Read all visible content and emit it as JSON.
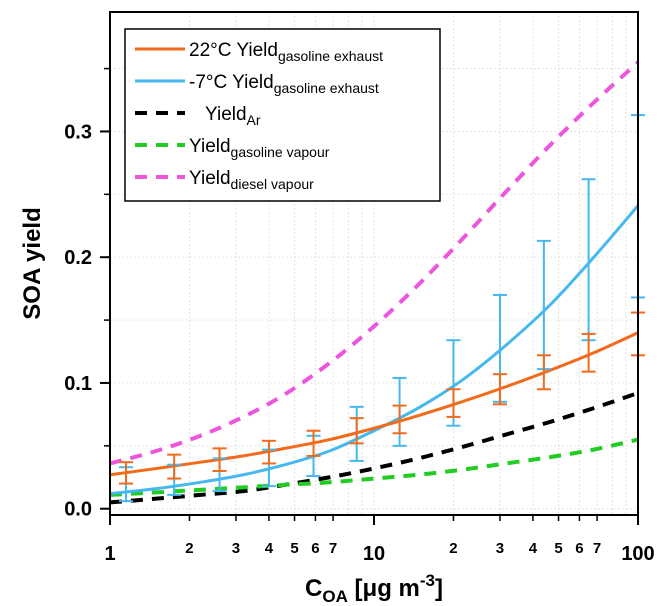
{
  "chart_data": {
    "type": "line",
    "xlabel": {
      "main": "C",
      "sub": "OA",
      "rest": " [μg m",
      "sup": "-3",
      "end": "]"
    },
    "ylabel": "SOA yield",
    "xscale": "log",
    "xlim": [
      1,
      100
    ],
    "ylim": [
      -0.005,
      0.395
    ],
    "x_major_ticks": [
      {
        "v": 1,
        "label": "1"
      },
      {
        "v": 10,
        "label": "10"
      },
      {
        "v": 100,
        "label": "100"
      }
    ],
    "x_minor_ticks": [
      {
        "v": 2,
        "label": "2"
      },
      {
        "v": 3,
        "label": "3"
      },
      {
        "v": 4,
        "label": "4"
      },
      {
        "v": 5,
        "label": "5"
      },
      {
        "v": 6,
        "label": "6"
      },
      {
        "v": 7,
        "label": "7"
      },
      {
        "v": 20,
        "label": "2"
      },
      {
        "v": 30,
        "label": "3"
      },
      {
        "v": 40,
        "label": "4"
      },
      {
        "v": 50,
        "label": "5"
      },
      {
        "v": 60,
        "label": "6"
      },
      {
        "v": 70,
        "label": "7"
      }
    ],
    "y_ticks": [
      {
        "v": 0,
        "label": "0.0"
      },
      {
        "v": 0.1,
        "label": "0.1"
      },
      {
        "v": 0.2,
        "label": "0.2"
      },
      {
        "v": 0.3,
        "label": "0.3"
      }
    ],
    "grid": true,
    "legend_position": "top-left",
    "series": [
      {
        "key": "warm",
        "name": "22°C Yield",
        "name_sub": "gasoline exhaust",
        "color": "#f26a1b",
        "dash": "solid",
        "x": [
          1,
          1.5,
          2.2,
          3.2,
          4.6,
          6.8,
          10,
          14.7,
          21.5,
          31.6,
          46.4,
          68,
          100
        ],
        "y": [
          0.027,
          0.032,
          0.037,
          0.042,
          0.048,
          0.055,
          0.064,
          0.074,
          0.085,
          0.097,
          0.11,
          0.124,
          0.14
        ]
      },
      {
        "key": "cold",
        "name": "-7°C Yield",
        "name_sub": "gasoline exhaust",
        "color": "#45b8f0",
        "dash": "solid",
        "x": [
          1,
          1.5,
          2.2,
          3.2,
          4.6,
          6.8,
          10,
          14.7,
          21.5,
          31.6,
          46.4,
          68,
          100
        ],
        "y": [
          0.012,
          0.016,
          0.021,
          0.027,
          0.035,
          0.046,
          0.062,
          0.08,
          0.102,
          0.13,
          0.162,
          0.2,
          0.241
        ]
      },
      {
        "key": "ar",
        "name": "Yield",
        "name_sub": "Ar",
        "color": "#000000",
        "dash": "dash",
        "x": [
          1,
          1.5,
          2.2,
          3.2,
          4.6,
          6.8,
          10,
          14.7,
          21.5,
          31.6,
          46.4,
          68,
          100
        ],
        "y": [
          0.005,
          0.008,
          0.011,
          0.014,
          0.019,
          0.025,
          0.032,
          0.04,
          0.049,
          0.059,
          0.069,
          0.08,
          0.092
        ]
      },
      {
        "key": "gv",
        "name": "Yield",
        "name_sub": "gasoline vapour",
        "color": "#22cc22",
        "dash": "dash",
        "x": [
          1,
          1.5,
          2.2,
          3.2,
          4.6,
          6.8,
          10,
          14.7,
          21.5,
          31.6,
          46.4,
          68,
          100
        ],
        "y": [
          0.011,
          0.013,
          0.015,
          0.017,
          0.019,
          0.021,
          0.024,
          0.027,
          0.031,
          0.036,
          0.041,
          0.047,
          0.055
        ]
      },
      {
        "key": "dv",
        "name": "Yield",
        "name_sub": "diesel vapour",
        "color": "#ee55dd",
        "dash": "dash",
        "x": [
          1,
          1.5,
          2.2,
          3.2,
          4.6,
          6.8,
          10,
          14.7,
          21.5,
          31.6,
          46.4,
          68,
          100
        ],
        "y": [
          0.036,
          0.046,
          0.058,
          0.073,
          0.091,
          0.116,
          0.145,
          0.178,
          0.214,
          0.252,
          0.289,
          0.323,
          0.355
        ]
      }
    ],
    "error_bars": [
      {
        "series": "cold",
        "color": "#45b8f0",
        "points": [
          {
            "x": 1.15,
            "lo": 0.006,
            "hi": 0.033
          },
          {
            "x": 1.75,
            "lo": 0.011,
            "hi": 0.035
          },
          {
            "x": 2.6,
            "lo": 0.014,
            "hi": 0.04
          },
          {
            "x": 4.0,
            "lo": 0.018,
            "hi": 0.047
          },
          {
            "x": 5.9,
            "lo": 0.026,
            "hi": 0.058
          },
          {
            "x": 8.6,
            "lo": 0.038,
            "hi": 0.081
          },
          {
            "x": 12.5,
            "lo": 0.05,
            "hi": 0.104
          },
          {
            "x": 20,
            "lo": 0.066,
            "hi": 0.134
          },
          {
            "x": 30,
            "lo": 0.085,
            "hi": 0.17
          },
          {
            "x": 44,
            "lo": 0.111,
            "hi": 0.213
          },
          {
            "x": 65,
            "lo": 0.134,
            "hi": 0.262
          },
          {
            "x": 100,
            "lo": 0.168,
            "hi": 0.313
          }
        ]
      },
      {
        "series": "warm",
        "color": "#f26a1b",
        "points": [
          {
            "x": 1.15,
            "lo": 0.02,
            "hi": 0.037
          },
          {
            "x": 1.75,
            "lo": 0.024,
            "hi": 0.043
          },
          {
            "x": 2.6,
            "lo": 0.03,
            "hi": 0.048
          },
          {
            "x": 4.0,
            "lo": 0.036,
            "hi": 0.054
          },
          {
            "x": 5.9,
            "lo": 0.042,
            "hi": 0.062
          },
          {
            "x": 8.6,
            "lo": 0.052,
            "hi": 0.072
          },
          {
            "x": 12.5,
            "lo": 0.06,
            "hi": 0.082
          },
          {
            "x": 20,
            "lo": 0.073,
            "hi": 0.095
          },
          {
            "x": 30,
            "lo": 0.083,
            "hi": 0.107
          },
          {
            "x": 44,
            "lo": 0.095,
            "hi": 0.122
          },
          {
            "x": 65,
            "lo": 0.109,
            "hi": 0.139
          },
          {
            "x": 100,
            "lo": 0.122,
            "hi": 0.156
          }
        ]
      }
    ]
  }
}
